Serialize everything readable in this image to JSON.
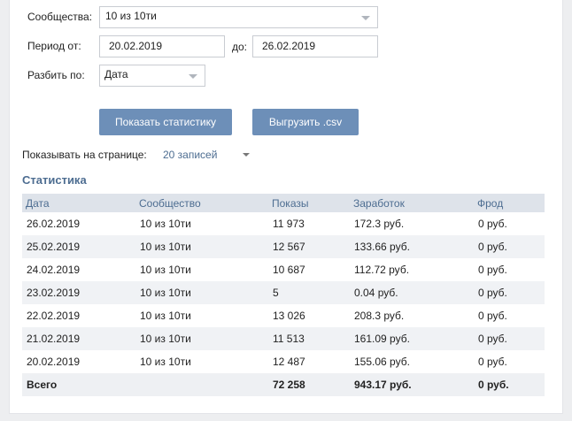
{
  "form": {
    "community_label": "Сообщества:",
    "community_value": "10 из 10ти",
    "period_label": "Период от:",
    "date_from": "20.02.2019",
    "to_label": "до:",
    "date_to": "26.02.2019",
    "split_label": "Разбить по:",
    "split_value": "Дата",
    "show_button": "Показать статистику",
    "export_button": "Выгрузить .csv",
    "per_page_label": "Показывать на странице:",
    "per_page_value": "20 записей"
  },
  "stats": {
    "title": "Статистика",
    "columns": [
      "Дата",
      "Сообщество",
      "Показы",
      "Заработок",
      "Фрод"
    ],
    "rows": [
      [
        "26.02.2019",
        "10 из 10ти",
        "11 973",
        "172.3 руб.",
        "0 руб."
      ],
      [
        "25.02.2019",
        "10 из 10ти",
        "12 567",
        "133.66 руб.",
        "0 руб."
      ],
      [
        "24.02.2019",
        "10 из 10ти",
        "10 687",
        "112.72 руб.",
        "0 руб."
      ],
      [
        "23.02.2019",
        "10 из 10ти",
        "5",
        "0.04 руб.",
        "0 руб."
      ],
      [
        "22.02.2019",
        "10 из 10ти",
        "13 026",
        "208.3 руб.",
        "0 руб."
      ],
      [
        "21.02.2019",
        "10 из 10ти",
        "11 513",
        "161.09 руб.",
        "0 руб."
      ],
      [
        "20.02.2019",
        "10 из 10ти",
        "12 487",
        "155.06 руб.",
        "0 руб."
      ]
    ],
    "total": [
      "Всего",
      "",
      "72 258",
      "943.17 руб.",
      "0 руб."
    ]
  }
}
